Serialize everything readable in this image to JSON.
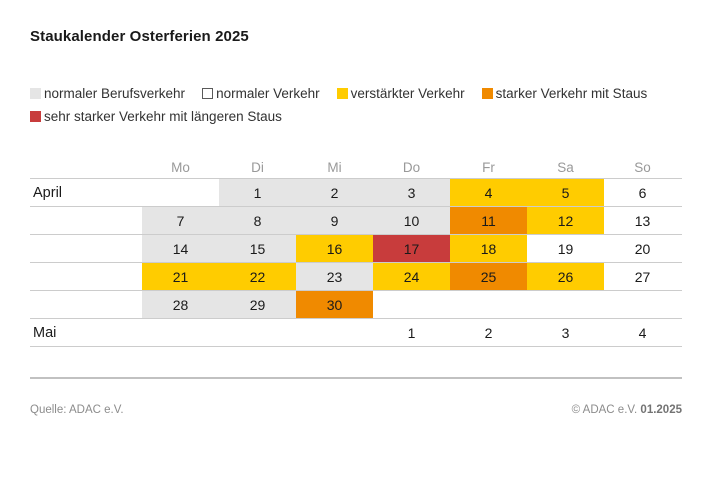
{
  "title": "Staukalender Osterferien 2025",
  "colors": {
    "berufsverkehr": "#e5e5e5",
    "normal": "#ffffff",
    "verstaerkt": "#ffcc00",
    "stark": "#f08a00",
    "sehr_stark": "#c83c3c",
    "grid_line": "#cccccc",
    "header_text": "#999999",
    "footer_text": "#8c8c8c"
  },
  "legend": {
    "items": [
      {
        "key": "berufsverkehr",
        "label": "normaler Berufsverkehr",
        "row": 0
      },
      {
        "key": "normal",
        "label": "normaler Verkehr",
        "row": 0
      },
      {
        "key": "verstaerkt",
        "label": "verstärkter Verkehr",
        "row": 0
      },
      {
        "key": "stark",
        "label": "starker Verkehr mit Staus",
        "row": 0
      },
      {
        "key": "sehr_stark",
        "label": "sehr starker Verkehr mit längeren Staus",
        "row": 1
      }
    ]
  },
  "calendar": {
    "day_headers": [
      "Mo",
      "Di",
      "Mi",
      "Do",
      "Fr",
      "Sa",
      "So"
    ],
    "rows": [
      {
        "month_label": "April",
        "cells": [
          {
            "day": "",
            "state": "none"
          },
          {
            "day": "1",
            "state": "berufsverkehr"
          },
          {
            "day": "2",
            "state": "berufsverkehr"
          },
          {
            "day": "3",
            "state": "berufsverkehr"
          },
          {
            "day": "4",
            "state": "verstaerkt"
          },
          {
            "day": "5",
            "state": "verstaerkt"
          },
          {
            "day": "6",
            "state": "normal"
          }
        ]
      },
      {
        "month_label": "",
        "cells": [
          {
            "day": "7",
            "state": "berufsverkehr"
          },
          {
            "day": "8",
            "state": "berufsverkehr"
          },
          {
            "day": "9",
            "state": "berufsverkehr"
          },
          {
            "day": "10",
            "state": "berufsverkehr"
          },
          {
            "day": "11",
            "state": "stark"
          },
          {
            "day": "12",
            "state": "verstaerkt"
          },
          {
            "day": "13",
            "state": "normal"
          }
        ]
      },
      {
        "month_label": "",
        "cells": [
          {
            "day": "14",
            "state": "berufsverkehr"
          },
          {
            "day": "15",
            "state": "berufsverkehr"
          },
          {
            "day": "16",
            "state": "verstaerkt"
          },
          {
            "day": "17",
            "state": "sehr_stark"
          },
          {
            "day": "18",
            "state": "verstaerkt"
          },
          {
            "day": "19",
            "state": "normal"
          },
          {
            "day": "20",
            "state": "normal"
          }
        ]
      },
      {
        "month_label": "",
        "cells": [
          {
            "day": "21",
            "state": "verstaerkt"
          },
          {
            "day": "22",
            "state": "verstaerkt"
          },
          {
            "day": "23",
            "state": "berufsverkehr"
          },
          {
            "day": "24",
            "state": "verstaerkt"
          },
          {
            "day": "25",
            "state": "stark"
          },
          {
            "day": "26",
            "state": "verstaerkt"
          },
          {
            "day": "27",
            "state": "normal"
          }
        ]
      },
      {
        "month_label": "",
        "cells": [
          {
            "day": "28",
            "state": "berufsverkehr"
          },
          {
            "day": "29",
            "state": "berufsverkehr"
          },
          {
            "day": "30",
            "state": "stark"
          },
          {
            "day": "",
            "state": "none"
          },
          {
            "day": "",
            "state": "none"
          },
          {
            "day": "",
            "state": "none"
          },
          {
            "day": "",
            "state": "none"
          }
        ]
      },
      {
        "month_label": "Mai",
        "cells": [
          {
            "day": "",
            "state": "none"
          },
          {
            "day": "",
            "state": "none"
          },
          {
            "day": "",
            "state": "none"
          },
          {
            "day": "1",
            "state": "normal"
          },
          {
            "day": "2",
            "state": "normal"
          },
          {
            "day": "3",
            "state": "normal"
          },
          {
            "day": "4",
            "state": "normal"
          }
        ]
      }
    ]
  },
  "footer": {
    "source": "Quelle: ADAC e.V.",
    "copyright": "© ADAC e.V.",
    "issue": "01.2025"
  },
  "chart_data": {
    "type": "heatmap",
    "title": "Staukalender Osterferien 2025",
    "columns": [
      "Mo",
      "Di",
      "Mi",
      "Do",
      "Fr",
      "Sa",
      "So"
    ],
    "row_labels": [
      "April",
      "",
      "",
      "",
      "",
      "Mai"
    ],
    "levels": [
      "normaler Berufsverkehr",
      "normaler Verkehr",
      "verstärkter Verkehr",
      "starker Verkehr mit Staus",
      "sehr starker Verkehr mit längeren Staus"
    ],
    "legend_position": "top",
    "dates": {
      "April": {
        "normaler Berufsverkehr": [
          1,
          2,
          3,
          7,
          8,
          9,
          10,
          14,
          15,
          23,
          28,
          29
        ],
        "normaler Verkehr": [
          6,
          13,
          19,
          20,
          27
        ],
        "verstärkter Verkehr": [
          4,
          5,
          12,
          16,
          18,
          21,
          22,
          24,
          26
        ],
        "starker Verkehr mit Staus": [
          11,
          25,
          30
        ],
        "sehr starker Verkehr mit längeren Staus": [
          17
        ]
      },
      "Mai": {
        "normaler Verkehr": [
          1,
          2,
          3,
          4
        ]
      }
    }
  }
}
